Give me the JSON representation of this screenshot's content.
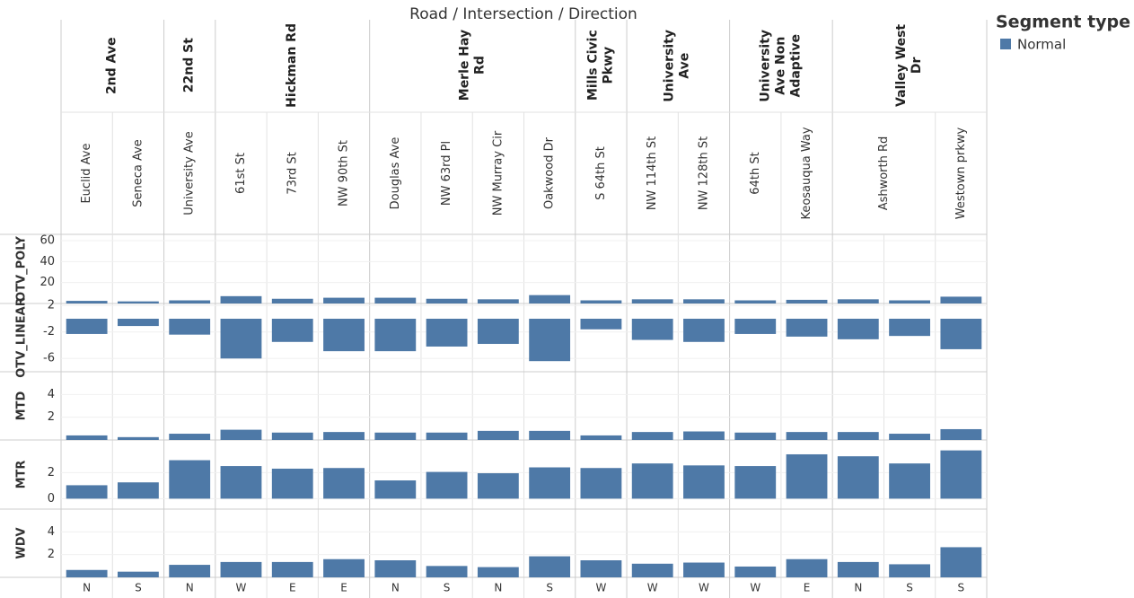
{
  "chart_data": {
    "type": "bar",
    "title": "Road / Intersection / Direction",
    "legend_title": "Segment type",
    "series_name": "Normal",
    "color": "#4e79a7",
    "grid": true,
    "roads": [
      {
        "name": "2nd Ave",
        "intersections": [
          {
            "name": "Euclid Ave",
            "directions": [
              "N"
            ]
          },
          {
            "name": "Seneca Ave",
            "directions": [
              "S"
            ]
          }
        ]
      },
      {
        "name": "22nd St",
        "intersections": [
          {
            "name": "University Ave",
            "directions": [
              "N"
            ]
          }
        ]
      },
      {
        "name": "Hickman Rd",
        "intersections": [
          {
            "name": "61st St",
            "directions": [
              "W"
            ]
          },
          {
            "name": "73rd St",
            "directions": [
              "E"
            ]
          },
          {
            "name": "NW 90th St",
            "directions": [
              "E"
            ]
          }
        ]
      },
      {
        "name": "Merle Hay Rd",
        "intersections": [
          {
            "name": "Douglas Ave",
            "directions": [
              "N"
            ]
          },
          {
            "name": "NW 63rd Pl",
            "directions": [
              "S"
            ]
          },
          {
            "name": "NW Murray Cir",
            "directions": [
              "N"
            ]
          },
          {
            "name": "Oakwood Dr",
            "directions": [
              "S"
            ]
          }
        ]
      },
      {
        "name": "Mills Civic Pkwy",
        "intersections": [
          {
            "name": "S 64th St",
            "directions": [
              "W"
            ]
          }
        ]
      },
      {
        "name": "University Ave",
        "intersections": [
          {
            "name": "NW 114th St",
            "directions": [
              "W"
            ]
          },
          {
            "name": "NW 128th St",
            "directions": [
              "W"
            ]
          }
        ]
      },
      {
        "name": "University Ave Non Adaptive",
        "intersections": [
          {
            "name": "64th St",
            "directions": [
              "W"
            ]
          },
          {
            "name": "Keosauqua Way",
            "directions": [
              "E"
            ]
          }
        ]
      },
      {
        "name": "Valley West Dr",
        "intersections": [
          {
            "name": "Ashworth Rd",
            "directions": [
              "N",
              "S"
            ]
          },
          {
            "name": "Westown prkwy",
            "directions": [
              "S"
            ]
          }
        ]
      }
    ],
    "rows": [
      {
        "name": "OTV_POLY",
        "ylim": [
          0,
          66
        ],
        "yticks": [
          20,
          40,
          60
        ],
        "values": [
          2.5,
          2,
          3,
          7,
          4.5,
          5.5,
          5.5,
          4.5,
          4,
          8,
          3,
          4,
          4,
          3,
          3.5,
          4,
          3,
          6.5
        ]
      },
      {
        "name": "OTV_LINEAR",
        "ylim": [
          -8,
          2.3
        ],
        "yticks": [
          2,
          -2,
          -6
        ],
        "values": [
          -2.3,
          -1.1,
          -2.4,
          -6,
          -3.5,
          -4.9,
          -4.9,
          -4.2,
          -3.8,
          -6.4,
          -1.6,
          -3.2,
          -3.5,
          -2.3,
          -2.7,
          -3.1,
          -2.6,
          -4.6
        ]
      },
      {
        "name": "MTD",
        "ylim": [
          0,
          6
        ],
        "yticks": [
          2,
          4
        ],
        "values": [
          0.4,
          0.25,
          0.55,
          0.9,
          0.65,
          0.7,
          0.65,
          0.65,
          0.8,
          0.8,
          0.4,
          0.7,
          0.75,
          0.65,
          0.7,
          0.7,
          0.55,
          0.95
        ]
      },
      {
        "name": "MTR",
        "ylim": [
          -0.8,
          4.5
        ],
        "yticks": [
          0,
          2
        ],
        "values": [
          1.03,
          1.25,
          2.95,
          2.5,
          2.3,
          2.35,
          1.4,
          2.05,
          1.95,
          2.4,
          2.35,
          2.7,
          2.55,
          2.5,
          3.4,
          3.25,
          2.7,
          3.7
        ]
      },
      {
        "name": "WDV",
        "ylim": [
          0,
          6
        ],
        "yticks": [
          2,
          4
        ],
        "values": [
          0.65,
          0.5,
          1.1,
          1.35,
          1.35,
          1.6,
          1.5,
          1.0,
          0.9,
          1.85,
          1.5,
          1.2,
          1.3,
          0.95,
          1.6,
          1.35,
          1.15,
          2.65
        ]
      }
    ]
  }
}
